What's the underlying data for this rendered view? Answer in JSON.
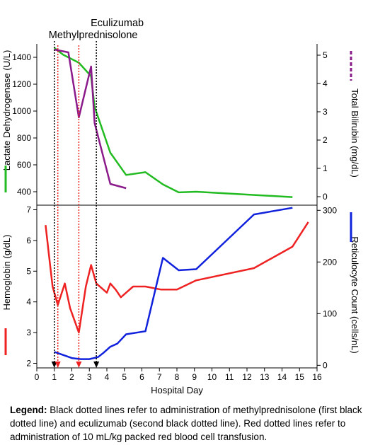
{
  "chart_data": [
    {
      "type": "line",
      "panel": "top",
      "x_range": [
        0,
        16
      ],
      "y_left": {
        "label": "Lactate Dehydrogenase (U/L)",
        "ylim": [
          300,
          1500
        ],
        "ticks": [
          400,
          600,
          800,
          1000,
          1200,
          1400
        ],
        "legend_color": "#22bb22"
      },
      "y_right": {
        "label": "Total Bilirubin (mg/dL)",
        "ylim": [
          -0.3,
          5.4
        ],
        "ticks": [
          0,
          1,
          2,
          3,
          4,
          5
        ],
        "legend_color": "#8b1a8b",
        "legend_dashed": true
      },
      "series": [
        {
          "axis": "left",
          "color": "#22bb22",
          "x": [
            1.0,
            1.5,
            2.4,
            3.1,
            3.3,
            4.2,
            5.1,
            6.2,
            7.2,
            8.1,
            9.1,
            14.6
          ],
          "y": [
            1470,
            1420,
            1360,
            1260,
            1030,
            690,
            525,
            545,
            455,
            395,
            400,
            360
          ]
        },
        {
          "axis": "right",
          "color": "#8b1a8b",
          "x": [
            1.0,
            1.8,
            2.4,
            3.1,
            3.3,
            4.2,
            5.1
          ],
          "y": [
            5.2,
            5.1,
            2.8,
            4.6,
            2.6,
            0.45,
            0.3
          ]
        }
      ]
    },
    {
      "type": "line",
      "panel": "bottom",
      "x_range": [
        0,
        16
      ],
      "xlabel": "Hospital Day",
      "xticks": [
        0,
        1,
        2,
        3,
        4,
        5,
        6,
        7,
        8,
        9,
        10,
        11,
        12,
        13,
        14,
        15,
        16
      ],
      "y_left": {
        "label": "Hemoglobin (g/dL)",
        "ylim": [
          1.85,
          7.15
        ],
        "ticks": [
          2,
          3,
          4,
          5,
          6,
          7
        ],
        "legend_color": "#ee2222"
      },
      "y_right": {
        "label": "Reticulocyte Count (cells/nL)",
        "ylim": [
          -5,
          310
        ],
        "ticks": [
          0,
          100,
          200,
          300
        ],
        "legend_color": "#1122dd"
      },
      "series": [
        {
          "axis": "left",
          "color": "#ee2222",
          "x": [
            0.5,
            0.7,
            0.9,
            1.2,
            1.6,
            1.9,
            2.4,
            2.8,
            3.1,
            3.4,
            4.0,
            4.2,
            4.5,
            4.8,
            5.1,
            5.5,
            6.2,
            7.1,
            8.0,
            9.1,
            12.4,
            14.6,
            15.5
          ],
          "y": [
            6.5,
            5.5,
            4.5,
            3.9,
            4.6,
            3.8,
            3.0,
            4.5,
            5.2,
            4.6,
            4.3,
            4.6,
            4.4,
            4.15,
            4.3,
            4.5,
            4.5,
            4.4,
            4.4,
            4.7,
            5.1,
            5.8,
            6.6
          ]
        },
        {
          "axis": "right",
          "color": "#1122dd",
          "x": [
            1.0,
            1.5,
            2.0,
            2.5,
            3.0,
            3.5,
            3.8,
            4.2,
            4.6,
            5.1,
            6.2,
            7.2,
            8.1,
            9.1,
            12.4,
            14.6
          ],
          "y": [
            26,
            20,
            14,
            12,
            12,
            16,
            24,
            36,
            42,
            60,
            66,
            208,
            184,
            186,
            292,
            305
          ]
        }
      ]
    }
  ],
  "events": [
    {
      "label": "Methylprednisolone",
      "day": 1.0,
      "color": "#000000"
    },
    {
      "label": "Eculizumab",
      "day": 3.4,
      "color": "#000000"
    },
    {
      "label": "",
      "day": 1.2,
      "color": "#ee2222"
    },
    {
      "label": "",
      "day": 2.4,
      "color": "#ee2222"
    }
  ],
  "legend": {
    "heading": "Legend:",
    "text": " Black dotted lines refer to administration of methylprednisolone (first black dotted line) and eculizumab (second black dotted line).  Red dotted lines refer to administration of 10 mL/kg packed red blood cell transfusion."
  }
}
